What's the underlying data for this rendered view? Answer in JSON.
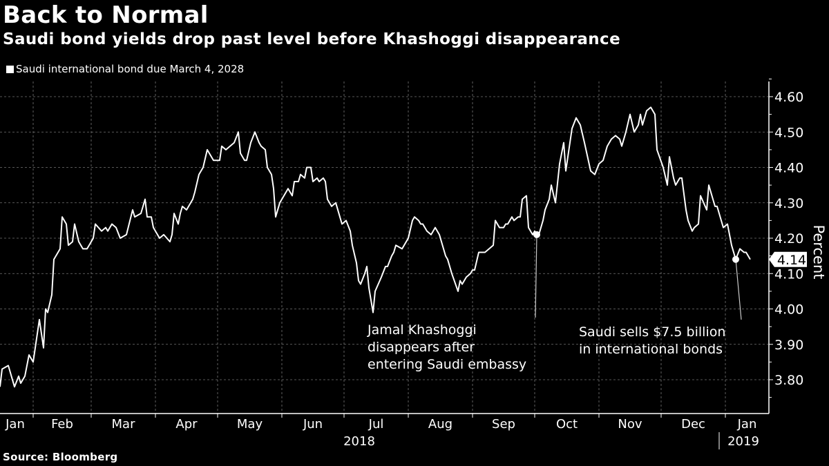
{
  "chart_data": {
    "type": "line",
    "title": "Back to Normal",
    "subtitle": "Saudi bond yields drop past level before Khashoggi disappearance",
    "source": "Source: Bloomberg",
    "ylabel": "Percent",
    "ylim": [
      3.7,
      4.65
    ],
    "yticks": [
      "4.60",
      "4.50",
      "4.40",
      "4.30",
      "4.20",
      "4.10",
      "4.00",
      "3.90",
      "3.80"
    ],
    "x_tick_labels": [
      "Jan",
      "Feb",
      "Mar",
      "Apr",
      "May",
      "Jun",
      "Jul",
      "Aug",
      "Sep",
      "Oct",
      "Nov",
      "Dec",
      "Jan"
    ],
    "year_labels": [
      "2018",
      "2019"
    ],
    "grid": true,
    "legend_position": "top-left",
    "line_color": "#ffffff",
    "last_value_label": "4.14",
    "series": [
      {
        "name": "Saudi international bond due March 4, 2028",
        "points": [
          [
            "2018-01-16",
            3.78
          ],
          [
            "2018-01-17",
            3.83
          ],
          [
            "2018-01-20",
            3.84
          ],
          [
            "2018-01-23",
            3.78
          ],
          [
            "2018-01-25",
            3.81
          ],
          [
            "2018-01-26",
            3.79
          ],
          [
            "2018-01-28",
            3.81
          ],
          [
            "2018-01-30",
            3.87
          ],
          [
            "2018-02-01",
            3.85
          ],
          [
            "2018-02-04",
            3.97
          ],
          [
            "2018-02-06",
            3.89
          ],
          [
            "2018-02-07",
            4.0
          ],
          [
            "2018-02-08",
            3.99
          ],
          [
            "2018-02-10",
            4.04
          ],
          [
            "2018-02-11",
            4.14
          ],
          [
            "2018-02-14",
            4.17
          ],
          [
            "2018-02-15",
            4.26
          ],
          [
            "2018-02-17",
            4.24
          ],
          [
            "2018-02-18",
            4.18
          ],
          [
            "2018-02-20",
            4.19
          ],
          [
            "2018-02-21",
            4.24
          ],
          [
            "2018-02-23",
            4.19
          ],
          [
            "2018-02-25",
            4.17
          ],
          [
            "2018-02-27",
            4.17
          ],
          [
            "2018-03-02",
            4.2
          ],
          [
            "2018-03-03",
            4.24
          ],
          [
            "2018-03-06",
            4.22
          ],
          [
            "2018-03-08",
            4.23
          ],
          [
            "2018-03-09",
            4.22
          ],
          [
            "2018-03-11",
            4.24
          ],
          [
            "2018-03-13",
            4.23
          ],
          [
            "2018-03-15",
            4.2
          ],
          [
            "2018-03-18",
            4.21
          ],
          [
            "2018-03-21",
            4.28
          ],
          [
            "2018-03-22",
            4.26
          ],
          [
            "2018-03-25",
            4.27
          ],
          [
            "2018-03-27",
            4.31
          ],
          [
            "2018-03-28",
            4.26
          ],
          [
            "2018-03-30",
            4.26
          ],
          [
            "2018-03-31",
            4.23
          ],
          [
            "2018-04-03",
            4.2
          ],
          [
            "2018-04-05",
            4.21
          ],
          [
            "2018-04-08",
            4.19
          ],
          [
            "2018-04-09",
            4.21
          ],
          [
            "2018-04-10",
            4.27
          ],
          [
            "2018-04-12",
            4.24
          ],
          [
            "2018-04-13",
            4.27
          ],
          [
            "2018-04-14",
            4.29
          ],
          [
            "2018-04-16",
            4.28
          ],
          [
            "2018-04-18",
            4.3
          ],
          [
            "2018-04-19",
            4.31
          ],
          [
            "2018-04-20",
            4.33
          ],
          [
            "2018-04-22",
            4.38
          ],
          [
            "2018-04-24",
            4.4
          ],
          [
            "2018-04-26",
            4.45
          ],
          [
            "2018-04-28",
            4.43
          ],
          [
            "2018-04-29",
            4.42
          ],
          [
            "2018-05-01",
            4.42
          ],
          [
            "2018-05-02",
            4.42
          ],
          [
            "2018-05-03",
            4.46
          ],
          [
            "2018-05-05",
            4.45
          ],
          [
            "2018-05-07",
            4.46
          ],
          [
            "2018-05-09",
            4.47
          ],
          [
            "2018-05-11",
            4.5
          ],
          [
            "2018-05-12",
            4.44
          ],
          [
            "2018-05-14",
            4.42
          ],
          [
            "2018-05-15",
            4.42
          ],
          [
            "2018-05-17",
            4.47
          ],
          [
            "2018-05-19",
            4.5
          ],
          [
            "2018-05-21",
            4.47
          ],
          [
            "2018-05-22",
            4.46
          ],
          [
            "2018-05-24",
            4.45
          ],
          [
            "2018-05-25",
            4.4
          ],
          [
            "2018-05-27",
            4.38
          ],
          [
            "2018-05-28",
            4.34
          ],
          [
            "2018-05-29",
            4.26
          ],
          [
            "2018-05-31",
            4.3
          ],
          [
            "2018-06-01",
            4.31
          ],
          [
            "2018-06-03",
            4.33
          ],
          [
            "2018-06-04",
            4.34
          ],
          [
            "2018-06-06",
            4.32
          ],
          [
            "2018-06-07",
            4.36
          ],
          [
            "2018-06-09",
            4.36
          ],
          [
            "2018-06-10",
            4.38
          ],
          [
            "2018-06-12",
            4.37
          ],
          [
            "2018-06-13",
            4.4
          ],
          [
            "2018-06-15",
            4.4
          ],
          [
            "2018-06-16",
            4.36
          ],
          [
            "2018-06-18",
            4.37
          ],
          [
            "2018-06-19",
            4.36
          ],
          [
            "2018-06-21",
            4.37
          ],
          [
            "2018-06-22",
            4.36
          ],
          [
            "2018-06-23",
            4.31
          ],
          [
            "2018-06-25",
            4.29
          ],
          [
            "2018-06-27",
            4.3
          ],
          [
            "2018-06-29",
            4.26
          ],
          [
            "2018-06-30",
            4.24
          ],
          [
            "2018-07-02",
            4.25
          ],
          [
            "2018-07-04",
            4.22
          ],
          [
            "2018-07-05",
            4.18
          ],
          [
            "2018-07-07",
            4.13
          ],
          [
            "2018-07-08",
            4.08
          ],
          [
            "2018-07-09",
            4.07
          ],
          [
            "2018-07-11",
            4.1
          ],
          [
            "2018-07-12",
            4.12
          ],
          [
            "2018-07-13",
            4.06
          ],
          [
            "2018-07-15",
            3.99
          ],
          [
            "2018-07-16",
            4.05
          ],
          [
            "2018-07-19",
            4.09
          ],
          [
            "2018-07-21",
            4.12
          ],
          [
            "2018-07-22",
            4.12
          ],
          [
            "2018-07-24",
            4.15
          ],
          [
            "2018-07-25",
            4.16
          ],
          [
            "2018-07-26",
            4.18
          ],
          [
            "2018-07-29",
            4.17
          ],
          [
            "2018-08-01",
            4.2
          ],
          [
            "2018-08-03",
            4.25
          ],
          [
            "2018-08-04",
            4.26
          ],
          [
            "2018-08-06",
            4.25
          ],
          [
            "2018-08-07",
            4.24
          ],
          [
            "2018-08-08",
            4.24
          ],
          [
            "2018-08-10",
            4.22
          ],
          [
            "2018-08-12",
            4.21
          ],
          [
            "2018-08-14",
            4.23
          ],
          [
            "2018-08-16",
            4.21
          ],
          [
            "2018-08-17",
            4.19
          ],
          [
            "2018-08-19",
            4.15
          ],
          [
            "2018-08-20",
            4.14
          ],
          [
            "2018-08-22",
            4.1
          ],
          [
            "2018-08-25",
            4.05
          ],
          [
            "2018-08-26",
            4.08
          ],
          [
            "2018-08-27",
            4.07
          ],
          [
            "2018-08-29",
            4.09
          ],
          [
            "2018-08-31",
            4.1
          ],
          [
            "2018-09-01",
            4.11
          ],
          [
            "2018-09-02",
            4.11
          ],
          [
            "2018-09-04",
            4.16
          ],
          [
            "2018-09-05",
            4.16
          ],
          [
            "2018-09-07",
            4.16
          ],
          [
            "2018-09-09",
            4.17
          ],
          [
            "2018-09-11",
            4.18
          ],
          [
            "2018-09-12",
            4.25
          ],
          [
            "2018-09-14",
            4.23
          ],
          [
            "2018-09-16",
            4.23
          ],
          [
            "2018-09-17",
            4.24
          ],
          [
            "2018-09-18",
            4.24
          ],
          [
            "2018-09-20",
            4.26
          ],
          [
            "2018-09-21",
            4.25
          ],
          [
            "2018-09-23",
            4.26
          ],
          [
            "2018-09-24",
            4.26
          ],
          [
            "2018-09-25",
            4.31
          ],
          [
            "2018-09-27",
            4.32
          ],
          [
            "2018-09-28",
            4.23
          ],
          [
            "2018-09-30",
            4.21
          ],
          [
            "2018-10-01",
            4.22
          ],
          [
            "2018-10-02",
            4.21
          ],
          [
            "2018-10-03",
            4.21
          ],
          [
            "2018-10-05",
            4.25
          ],
          [
            "2018-10-06",
            4.28
          ],
          [
            "2018-10-08",
            4.31
          ],
          [
            "2018-10-09",
            4.35
          ],
          [
            "2018-10-11",
            4.3
          ],
          [
            "2018-10-13",
            4.41
          ],
          [
            "2018-10-15",
            4.47
          ],
          [
            "2018-10-16",
            4.39
          ],
          [
            "2018-10-19",
            4.51
          ],
          [
            "2018-10-21",
            4.54
          ],
          [
            "2018-10-23",
            4.52
          ],
          [
            "2018-10-25",
            4.47
          ],
          [
            "2018-10-28",
            4.39
          ],
          [
            "2018-10-30",
            4.38
          ],
          [
            "2018-11-01",
            4.41
          ],
          [
            "2018-11-03",
            4.42
          ],
          [
            "2018-11-05",
            4.46
          ],
          [
            "2018-11-07",
            4.48
          ],
          [
            "2018-11-09",
            4.49
          ],
          [
            "2018-11-11",
            4.48
          ],
          [
            "2018-11-12",
            4.46
          ],
          [
            "2018-11-14",
            4.5
          ],
          [
            "2018-11-16",
            4.55
          ],
          [
            "2018-11-18",
            4.5
          ],
          [
            "2018-11-20",
            4.52
          ],
          [
            "2018-11-21",
            4.55
          ],
          [
            "2018-11-22",
            4.52
          ],
          [
            "2018-11-24",
            4.56
          ],
          [
            "2018-11-26",
            4.57
          ],
          [
            "2018-11-28",
            4.55
          ],
          [
            "2018-11-29",
            4.45
          ],
          [
            "2018-12-02",
            4.4
          ],
          [
            "2018-12-04",
            4.35
          ],
          [
            "2018-12-05",
            4.43
          ],
          [
            "2018-12-07",
            4.37
          ],
          [
            "2018-12-08",
            4.35
          ],
          [
            "2018-12-10",
            4.37
          ],
          [
            "2018-12-11",
            4.37
          ],
          [
            "2018-12-13",
            4.28
          ],
          [
            "2018-12-14",
            4.25
          ],
          [
            "2018-12-16",
            4.22
          ],
          [
            "2018-12-17",
            4.23
          ],
          [
            "2018-12-19",
            4.24
          ],
          [
            "2018-12-20",
            4.32
          ],
          [
            "2018-12-23",
            4.28
          ],
          [
            "2018-12-24",
            4.35
          ],
          [
            "2018-12-27",
            4.29
          ],
          [
            "2018-12-28",
            4.29
          ],
          [
            "2018-12-31",
            4.23
          ],
          [
            "2019-01-02",
            4.24
          ],
          [
            "2019-01-04",
            4.18
          ],
          [
            "2019-01-06",
            4.14
          ],
          [
            "2019-01-08",
            4.17
          ],
          [
            "2019-01-10",
            4.16
          ],
          [
            "2019-01-11",
            4.16
          ],
          [
            "2019-01-13",
            4.14
          ]
        ]
      }
    ],
    "annotations": [
      {
        "date": "2018-10-02",
        "value": 4.21,
        "lines": [
          "Jamal Khashoggi",
          "disappears after",
          "entering Saudi embassy"
        ]
      },
      {
        "date": "2019-01-06",
        "value": 4.14,
        "lines": [
          "Saudi sells $7.5 billion",
          "in international bonds"
        ]
      }
    ]
  }
}
